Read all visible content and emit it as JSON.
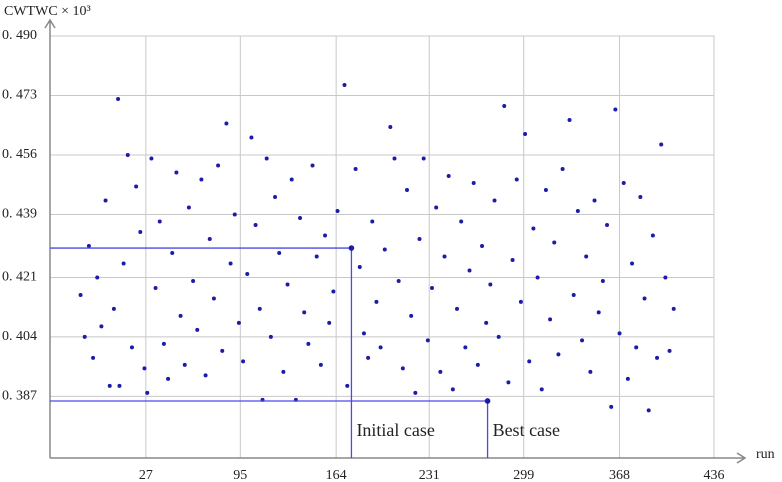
{
  "chart_data": {
    "type": "scatter",
    "y_label": "CWTWC × 10³",
    "x_label": "run",
    "color": "#1c1ca8",
    "grid": true,
    "xlim": [
      -42,
      436
    ],
    "ylim": [
      0.3694,
      0.49
    ],
    "xticks": [
      27,
      95,
      164,
      231,
      299,
      368,
      436
    ],
    "yticks": [
      {
        "value": 0.49,
        "label": "0. 490"
      },
      {
        "value": 0.473,
        "label": "0. 473"
      },
      {
        "value": 0.456,
        "label": "0. 456"
      },
      {
        "value": 0.439,
        "label": "0. 439"
      },
      {
        "value": 0.421,
        "label": "0. 421"
      },
      {
        "value": 0.404,
        "label": "0. 404"
      },
      {
        "value": 0.387,
        "label": "0. 387"
      }
    ],
    "x": [
      -20,
      -17,
      -14,
      -11,
      -8,
      -5,
      -2,
      1,
      4,
      7,
      8,
      11,
      14,
      17,
      20,
      23,
      26,
      28,
      31,
      34,
      37,
      40,
      43,
      46,
      49,
      52,
      55,
      58,
      61,
      64,
      67,
      70,
      73,
      76,
      79,
      82,
      85,
      88,
      91,
      94,
      97,
      100,
      103,
      106,
      109,
      111,
      114,
      117,
      120,
      123,
      126,
      129,
      132,
      135,
      138,
      141,
      144,
      147,
      150,
      153,
      156,
      159,
      162,
      165,
      170,
      172,
      178,
      181,
      184,
      187,
      190,
      193,
      196,
      199,
      203,
      206,
      209,
      212,
      215,
      218,
      221,
      224,
      227,
      230,
      233,
      236,
      239,
      242,
      245,
      248,
      251,
      254,
      257,
      260,
      263,
      266,
      269,
      272,
      275,
      278,
      281,
      285,
      288,
      291,
      294,
      297,
      300,
      303,
      306,
      309,
      312,
      315,
      318,
      321,
      324,
      327,
      332,
      335,
      338,
      341,
      344,
      347,
      350,
      353,
      356,
      359,
      362,
      365,
      368,
      371,
      374,
      377,
      380,
      383,
      386,
      389,
      392,
      395,
      398,
      401,
      404,
      407
    ],
    "values": [
      0.416,
      0.404,
      0.43,
      0.398,
      0.421,
      0.407,
      0.443,
      0.39,
      0.412,
      0.472,
      0.39,
      0.425,
      0.456,
      0.401,
      0.447,
      0.434,
      0.395,
      0.388,
      0.455,
      0.418,
      0.437,
      0.402,
      0.392,
      0.428,
      0.451,
      0.41,
      0.396,
      0.441,
      0.42,
      0.406,
      0.449,
      0.393,
      0.432,
      0.415,
      0.453,
      0.4,
      0.465,
      0.425,
      0.439,
      0.408,
      0.397,
      0.422,
      0.461,
      0.436,
      0.412,
      0.386,
      0.455,
      0.404,
      0.444,
      0.428,
      0.394,
      0.419,
      0.449,
      0.386,
      0.438,
      0.411,
      0.402,
      0.453,
      0.427,
      0.396,
      0.433,
      0.408,
      0.417,
      0.44,
      0.476,
      0.39,
      0.452,
      0.424,
      0.405,
      0.398,
      0.437,
      0.414,
      0.401,
      0.429,
      0.464,
      0.455,
      0.42,
      0.395,
      0.446,
      0.41,
      0.388,
      0.432,
      0.455,
      0.403,
      0.418,
      0.441,
      0.394,
      0.427,
      0.45,
      0.389,
      0.412,
      0.437,
      0.401,
      0.423,
      0.448,
      0.396,
      0.43,
      0.408,
      0.419,
      0.443,
      0.404,
      0.47,
      0.391,
      0.426,
      0.449,
      0.414,
      0.462,
      0.397,
      0.435,
      0.421,
      0.389,
      0.446,
      0.409,
      0.431,
      0.399,
      0.452,
      0.466,
      0.416,
      0.44,
      0.403,
      0.427,
      0.394,
      0.443,
      0.411,
      0.42,
      0.436,
      0.384,
      0.469,
      0.405,
      0.448,
      0.392,
      0.425,
      0.401,
      0.444,
      0.415,
      0.383,
      0.433,
      0.398,
      0.459,
      0.421,
      0.4,
      0.412
    ],
    "annotations": [
      {
        "text": "Initial case",
        "x": 175,
        "y": 0.4294
      },
      {
        "text": "Best case",
        "x": 273,
        "y": 0.3857
      }
    ]
  }
}
